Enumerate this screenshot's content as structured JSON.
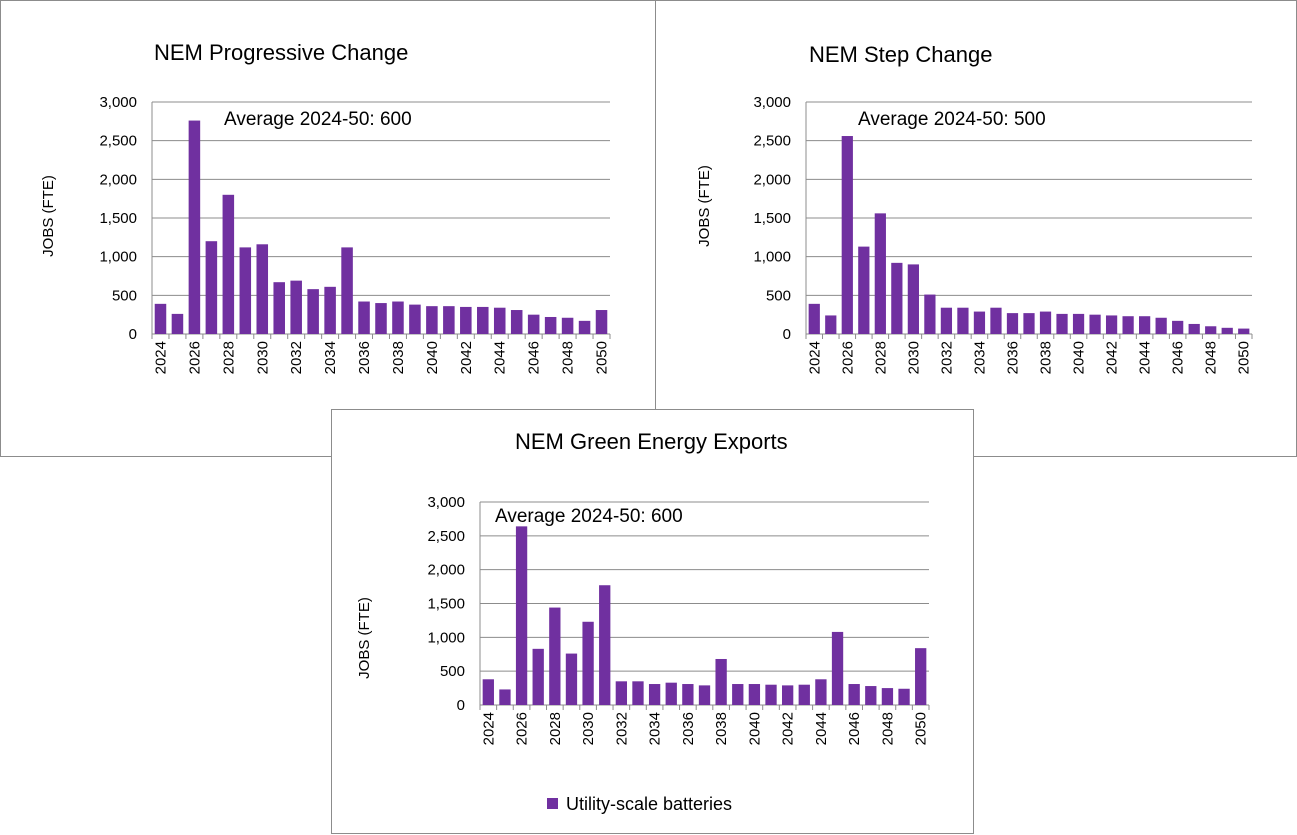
{
  "chart_data": [
    {
      "type": "bar",
      "title": "NEM Progressive Change",
      "ylabel": "JOBS (FTE)",
      "xlabel": "",
      "annotation": "Average  2024-50: 600",
      "ylim": [
        0,
        3000
      ],
      "yticks": [
        "0",
        "500",
        "1,000",
        "1,500",
        "2,000",
        "2,500",
        "3,000"
      ],
      "xtick_labels": [
        "2024",
        "2026",
        "2028",
        "2030",
        "2032",
        "2034",
        "2036",
        "2038",
        "2040",
        "2042",
        "2044",
        "2046",
        "2048",
        "2050"
      ],
      "categories": [
        "2024",
        "2025",
        "2026",
        "2027",
        "2028",
        "2029",
        "2030",
        "2031",
        "2032",
        "2033",
        "2034",
        "2035",
        "2036",
        "2037",
        "2038",
        "2039",
        "2040",
        "2041",
        "2042",
        "2043",
        "2044",
        "2045",
        "2046",
        "2047",
        "2048",
        "2049",
        "2050"
      ],
      "series": [
        {
          "name": "Utility-scale batteries",
          "values": [
            390,
            260,
            2760,
            1200,
            1800,
            1120,
            1160,
            670,
            690,
            580,
            610,
            1120,
            420,
            400,
            420,
            380,
            360,
            360,
            350,
            350,
            340,
            310,
            250,
            220,
            210,
            170,
            310
          ]
        }
      ]
    },
    {
      "type": "bar",
      "title": "NEM Step Change",
      "ylabel": "JOBS (FTE)",
      "xlabel": "",
      "annotation": "Average  2024-50: 500",
      "ylim": [
        0,
        3000
      ],
      "yticks": [
        "0",
        "500",
        "1,000",
        "1,500",
        "2,000",
        "2,500",
        "3,000"
      ],
      "xtick_labels": [
        "2024",
        "2026",
        "2028",
        "2030",
        "2032",
        "2034",
        "2036",
        "2038",
        "2040",
        "2042",
        "2044",
        "2046",
        "2048",
        "2050"
      ],
      "categories": [
        "2024",
        "2025",
        "2026",
        "2027",
        "2028",
        "2029",
        "2030",
        "2031",
        "2032",
        "2033",
        "2034",
        "2035",
        "2036",
        "2037",
        "2038",
        "2039",
        "2040",
        "2041",
        "2042",
        "2043",
        "2044",
        "2045",
        "2046",
        "2047",
        "2048",
        "2049",
        "2050"
      ],
      "series": [
        {
          "name": "Utility-scale batteries",
          "values": [
            390,
            240,
            2560,
            1130,
            1560,
            920,
            900,
            510,
            340,
            340,
            290,
            340,
            270,
            270,
            290,
            260,
            260,
            250,
            240,
            230,
            230,
            210,
            170,
            130,
            100,
            80,
            70
          ]
        }
      ]
    },
    {
      "type": "bar",
      "title": "NEM Green Energy Exports",
      "ylabel": "JOBS (FTE)",
      "xlabel": "",
      "annotation": "Average  2024-50: 600",
      "ylim": [
        0,
        3000
      ],
      "yticks": [
        "0",
        "500",
        "1,000",
        "1,500",
        "2,000",
        "2,500",
        "3,000"
      ],
      "xtick_labels": [
        "2024",
        "2026",
        "2028",
        "2030",
        "2032",
        "2034",
        "2036",
        "2038",
        "2040",
        "2042",
        "2044",
        "2046",
        "2048",
        "2050"
      ],
      "categories": [
        "2024",
        "2025",
        "2026",
        "2027",
        "2028",
        "2029",
        "2030",
        "2031",
        "2032",
        "2033",
        "2034",
        "2035",
        "2036",
        "2037",
        "2038",
        "2039",
        "2040",
        "2041",
        "2042",
        "2043",
        "2044",
        "2045",
        "2046",
        "2047",
        "2048",
        "2049",
        "2050"
      ],
      "legend": "bottom",
      "series": [
        {
          "name": "Utility-scale batteries",
          "values": [
            380,
            230,
            2640,
            830,
            1440,
            760,
            1230,
            1770,
            350,
            350,
            310,
            330,
            310,
            290,
            680,
            310,
            310,
            300,
            290,
            300,
            380,
            1080,
            310,
            280,
            250,
            240,
            840
          ]
        }
      ]
    }
  ],
  "colors": {
    "bar": "#7030a0",
    "grid": "#8c8c8c"
  }
}
